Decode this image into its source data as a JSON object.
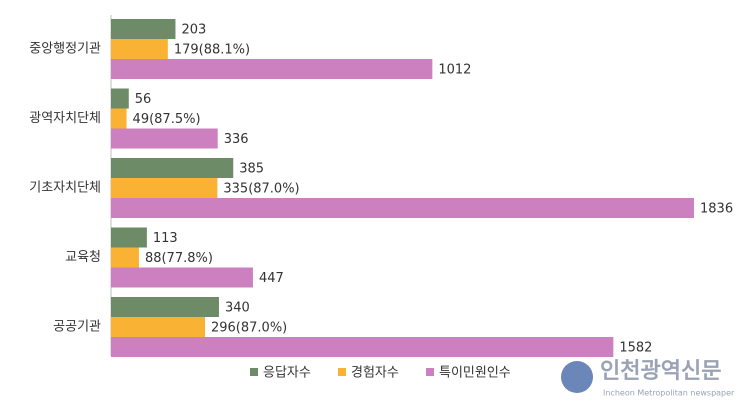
{
  "chart_data": {
    "type": "hbar",
    "categories": [
      "중앙행정기관",
      "광역자치단체",
      "기초자치단체",
      "교육청",
      "공공기관"
    ],
    "series": [
      {
        "name": "응답자수",
        "color": "#6e8b67",
        "values": [
          203,
          56,
          385,
          113,
          340
        ]
      },
      {
        "name": "경험자수",
        "color": "#f9b234",
        "values": [
          179,
          49,
          335,
          88,
          296
        ],
        "value_labels": [
          "179(88.1%)",
          "49(87.5%)",
          "335(87.0%)",
          "88(77.8%)",
          "296(87.0%)"
        ]
      },
      {
        "name": "특이민원인수",
        "color": "#cc80c0",
        "values": [
          1012,
          336,
          1836,
          447,
          1582
        ]
      }
    ],
    "legend": "bottom"
  },
  "watermark": {
    "title": "인천광역신문",
    "subtitle": "Incheon Metropolitan newspaper"
  }
}
